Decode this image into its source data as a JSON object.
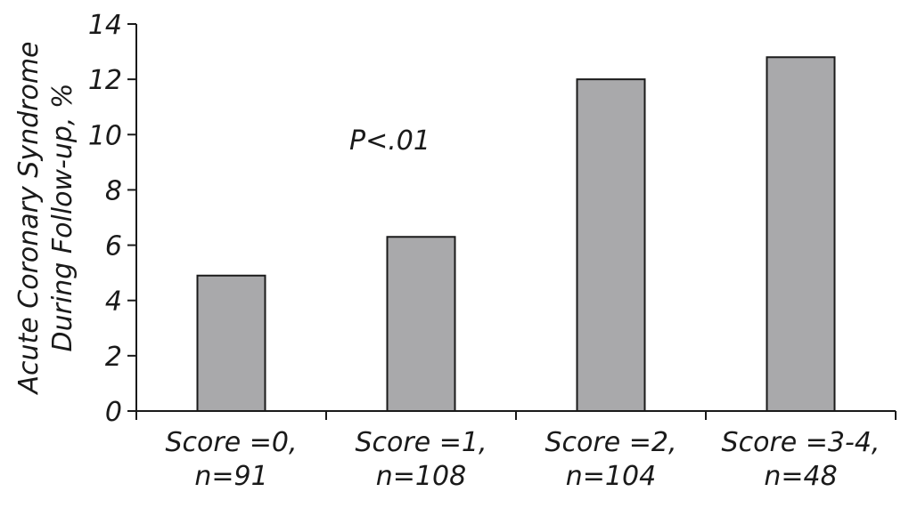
{
  "chart_data": {
    "type": "bar",
    "categories": [
      [
        "Score =0,",
        "n=91"
      ],
      [
        "Score =1,",
        "n=108"
      ],
      [
        "Score =2,",
        "n=104"
      ],
      [
        "Score =3-4,",
        "n=48"
      ]
    ],
    "values": [
      4.9,
      6.3,
      12.0,
      12.8
    ],
    "ylabel": [
      "Acute Coronary Syndrome",
      "During Follow-up, %"
    ],
    "ylim": [
      0,
      14
    ],
    "yticks": [
      "0",
      "2",
      "4",
      "6",
      "8",
      "10",
      "12",
      "14"
    ],
    "annotation": "P<.01",
    "grid": false,
    "colors": {
      "bar": "#a9a9ab",
      "outline": "#1a1a1a"
    }
  }
}
